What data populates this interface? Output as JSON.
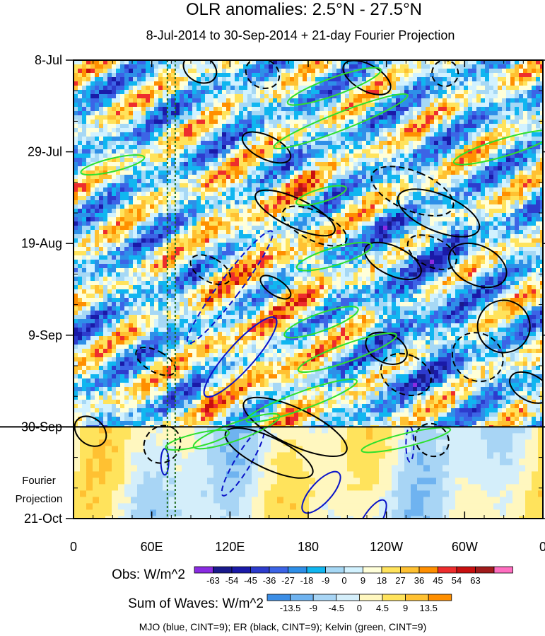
{
  "chart_data": {
    "type": "heatmap",
    "title": "OLR anomalies: 2.5°N - 27.5°N",
    "subtitle": "8-Jul-2014 to 30-Sep-2014 + 21-day Fourier Projection",
    "x_ticks": [
      "0",
      "60E",
      "120E",
      "180",
      "120W",
      "60W",
      "0"
    ],
    "x_tick_lon": [
      0,
      60,
      120,
      180,
      240,
      300,
      360
    ],
    "xlim": [
      0,
      360
    ],
    "y_ticks": [
      "8-Jul",
      "29-Jul",
      "19-Aug",
      "9-Sep",
      "30-Sep",
      "21-Oct"
    ],
    "y_tick_day": [
      0,
      21,
      42,
      63,
      84,
      105
    ],
    "ylim_days": [
      0,
      105
    ],
    "forecast_start_day": 84,
    "forecast_label_line1": "Fourier",
    "forecast_label_line2": "Projection",
    "reference_lines_lon": [
      72,
      78
    ],
    "obs_colorbar": {
      "label": "Obs: W/m^2",
      "ticks": [
        "-63",
        "-54",
        "-45",
        "-36",
        "-27",
        "-18",
        "-9",
        "0",
        "9",
        "18",
        "27",
        "36",
        "45",
        "54",
        "63"
      ],
      "colors": [
        "#8a2be2",
        "#1a1a8c",
        "#1a1aa8",
        "#2d3ccd",
        "#3c64e6",
        "#2e8fe8",
        "#10b6f0",
        "#a6d8f5",
        "#d2f2ff",
        "#ffffd9",
        "#ffe35c",
        "#ffc132",
        "#ff8f00",
        "#ee2d2d",
        "#c80f0f",
        "#a01b1b",
        "#ff6ec0"
      ]
    },
    "waves_colorbar": {
      "label": "Sum of Waves: W/m^2",
      "ticks": [
        "-13.5",
        "-9",
        "-4.5",
        "0",
        "4.5",
        "9",
        "13.5"
      ],
      "colors": [
        "#3c8ee6",
        "#6fb3f0",
        "#a8d5f5",
        "#d4eefa",
        "#fff7bf",
        "#ffe35c",
        "#ffc132",
        "#ff8f00"
      ]
    },
    "footnote": "MJO (blue, CINT=9); ER (black, CINT=9); Kelvin (green, CINT=9)",
    "series": [
      {
        "name": "MJO",
        "color": "#0a14c8",
        "contours": [
          {
            "lon": 120,
            "day": 52,
            "rlon": 8,
            "rday": 16,
            "tilt": -0.25,
            "dash": true
          },
          {
            "lon": 128,
            "day": 68,
            "rlon": 10,
            "rday": 12,
            "tilt": -0.3,
            "dash": false
          },
          {
            "lon": 190,
            "day": 99,
            "rlon": 8,
            "rday": 6,
            "tilt": -0.3,
            "dash": false
          },
          {
            "lon": 228,
            "day": 106,
            "rlon": 7,
            "rday": 6,
            "tilt": -0.2,
            "dash": false
          },
          {
            "lon": 130,
            "day": 92,
            "rlon": 6,
            "rday": 9,
            "tilt": -0.2,
            "dash": true
          },
          {
            "lon": 70,
            "day": 92,
            "rlon": 3,
            "rday": 3,
            "tilt": 0,
            "dash": false
          },
          {
            "lon": 258,
            "day": 88,
            "rlon": 3,
            "rday": 4,
            "tilt": 0,
            "dash": true
          }
        ]
      },
      {
        "name": "ER",
        "color": "#000000",
        "contours": [
          {
            "lon": 97,
            "day": 2,
            "rlon": 10,
            "rday": 4,
            "tilt": 0.6,
            "dash": false
          },
          {
            "lon": 145,
            "day": 3,
            "rlon": 11,
            "rday": 4,
            "tilt": 0.6,
            "dash": true
          },
          {
            "lon": 225,
            "day": 4,
            "rlon": 10,
            "rday": 6,
            "tilt": 0.6,
            "dash": false
          },
          {
            "lon": 285,
            "day": 3,
            "rlon": 10,
            "rday": 3,
            "tilt": 0.6,
            "dash": true
          },
          {
            "lon": 148,
            "day": 20,
            "rlon": 9,
            "rday": 6,
            "tilt": 0.7,
            "dash": false
          },
          {
            "lon": 260,
            "day": 30,
            "rlon": 15,
            "rday": 10,
            "tilt": 0.8,
            "dash": true
          },
          {
            "lon": 280,
            "day": 35,
            "rlon": 14,
            "rday": 10,
            "tilt": 0.8,
            "dash": false
          },
          {
            "lon": 170,
            "day": 35,
            "rlon": 11,
            "rday": 10,
            "tilt": 0.7,
            "dash": false
          },
          {
            "lon": 185,
            "day": 38,
            "rlon": 11,
            "rday": 8,
            "tilt": 0.7,
            "dash": true
          },
          {
            "lon": 245,
            "day": 46,
            "rlon": 11,
            "rday": 7,
            "tilt": 0.7,
            "dash": false
          },
          {
            "lon": 275,
            "day": 44,
            "rlon": 11,
            "rday": 6,
            "tilt": 0.7,
            "dash": true
          },
          {
            "lon": 310,
            "day": 47,
            "rlon": 15,
            "rday": 7,
            "tilt": 0.7,
            "dash": false
          },
          {
            "lon": 330,
            "day": 61,
            "rlon": 20,
            "rday": 6,
            "tilt": 0.6,
            "dash": false
          },
          {
            "lon": 310,
            "day": 68,
            "rlon": 18,
            "rday": 6,
            "tilt": 0.5,
            "dash": true
          },
          {
            "lon": 240,
            "day": 66,
            "rlon": 11,
            "rday": 5,
            "tilt": 0.7,
            "dash": false
          },
          {
            "lon": 255,
            "day": 72,
            "rlon": 15,
            "rday": 6,
            "tilt": 0.7,
            "dash": true
          },
          {
            "lon": 63,
            "day": 69,
            "rlon": 8,
            "rday": 5,
            "tilt": 0.6,
            "dash": true
          },
          {
            "lon": 350,
            "day": 75,
            "rlon": 10,
            "rday": 5,
            "tilt": 0.6,
            "dash": false
          },
          {
            "lon": 170,
            "day": 84,
            "rlon": 14,
            "rday": 13,
            "tilt": 0.7,
            "dash": false
          },
          {
            "lon": 150,
            "day": 90,
            "rlon": 12,
            "rday": 11,
            "tilt": 0.7,
            "dash": false
          },
          {
            "lon": 13,
            "day": 85,
            "rlon": 10,
            "rday": 4,
            "tilt": 0.4,
            "dash": false
          },
          {
            "lon": 275,
            "day": 87,
            "rlon": 12,
            "rday": 4,
            "tilt": 0.4,
            "dash": true
          },
          {
            "lon": 68,
            "day": 88,
            "rlon": 15,
            "rday": 4,
            "tilt": 0.4,
            "dash": true
          },
          {
            "lon": 105,
            "day": 48,
            "rlon": 9,
            "rday": 5,
            "tilt": 0.6,
            "dash": true
          },
          {
            "lon": 155,
            "day": 52,
            "rlon": 6,
            "rday": 4,
            "tilt": 0.5,
            "dash": false
          }
        ]
      },
      {
        "name": "Kelvin",
        "color": "#2de02d",
        "contours": [
          {
            "lon": 200,
            "day": 6,
            "rlon": 38,
            "rday": 2,
            "tilt": 0.12,
            "dash": false
          },
          {
            "lon": 205,
            "day": 14,
            "rlon": 55,
            "rday": 2,
            "tilt": 0.13,
            "dash": false
          },
          {
            "lon": 330,
            "day": 20,
            "rlon": 40,
            "rday": 2,
            "tilt": 0.1,
            "dash": false
          },
          {
            "lon": 30,
            "day": 24,
            "rlon": 25,
            "rday": 1.5,
            "tilt": 0.08,
            "dash": false
          },
          {
            "lon": 190,
            "day": 31,
            "rlon": 20,
            "rday": 1.5,
            "tilt": 0.1,
            "dash": false
          },
          {
            "lon": 200,
            "day": 45,
            "rlon": 30,
            "rday": 2,
            "tilt": 0.1,
            "dash": false
          },
          {
            "lon": 190,
            "day": 60,
            "rlon": 30,
            "rday": 2,
            "tilt": 0.12,
            "dash": false
          },
          {
            "lon": 210,
            "day": 67,
            "rlon": 40,
            "rday": 2,
            "tilt": 0.12,
            "dash": false
          },
          {
            "lon": 175,
            "day": 78,
            "rlon": 45,
            "rday": 2,
            "tilt": 0.12,
            "dash": false
          },
          {
            "lon": 125,
            "day": 85,
            "rlon": 35,
            "rday": 2,
            "tilt": 0.12,
            "dash": false
          },
          {
            "lon": 255,
            "day": 87,
            "rlon": 35,
            "rday": 1.5,
            "tilt": 0.08,
            "dash": false
          },
          {
            "lon": 95,
            "day": 87,
            "rlon": 25,
            "rday": 1.5,
            "tilt": 0.08,
            "dash": false
          }
        ]
      }
    ]
  }
}
